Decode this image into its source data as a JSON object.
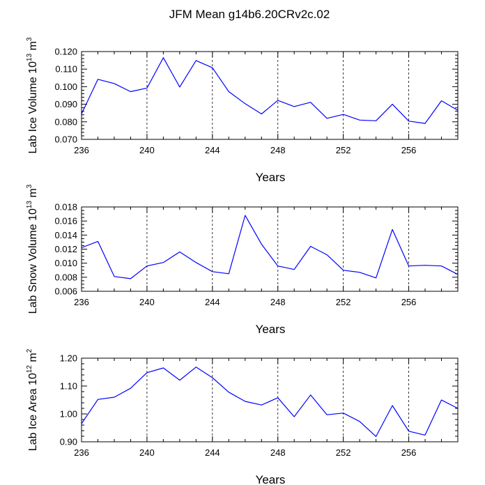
{
  "title": "JFM Mean g14b6.20CRv2c.02",
  "line_color": "#0000ff",
  "chart_data": [
    {
      "type": "line",
      "xlabel": "Years",
      "ylabel_main": "Lab Ice Volume 10",
      "ylabel_exp": "13",
      "ylabel_unit": " m",
      "ylabel_unit_exp": "3",
      "xlim": [
        236,
        259
      ],
      "ylim": [
        0.07,
        0.12
      ],
      "x_ticks": [
        "236",
        "240",
        "244",
        "248",
        "252",
        "256"
      ],
      "y_ticks": [
        "0.070",
        "0.080",
        "0.090",
        "0.100",
        "0.110",
        "0.120"
      ],
      "x": [
        236,
        237,
        238,
        239,
        240,
        241,
        242,
        243,
        244,
        245,
        246,
        247,
        248,
        249,
        250,
        251,
        252,
        253,
        254,
        255,
        256,
        257,
        258,
        259
      ],
      "values": [
        0.0845,
        0.1042,
        0.1018,
        0.0972,
        0.0992,
        0.1165,
        0.0998,
        0.1149,
        0.1108,
        0.0972,
        0.0903,
        0.0845,
        0.0922,
        0.0887,
        0.0911,
        0.082,
        0.0842,
        0.081,
        0.0806,
        0.09,
        0.0804,
        0.0791,
        0.092,
        0.0865
      ]
    },
    {
      "type": "line",
      "xlabel": "Years",
      "ylabel_main": "Lab Snow Volume 10",
      "ylabel_exp": "13",
      "ylabel_unit": " m",
      "ylabel_unit_exp": "3",
      "xlim": [
        236,
        259
      ],
      "ylim": [
        0.006,
        0.018
      ],
      "x_ticks": [
        "236",
        "240",
        "244",
        "248",
        "252",
        "256"
      ],
      "y_ticks": [
        "0.006",
        "0.008",
        "0.010",
        "0.012",
        "0.014",
        "0.016",
        "0.018"
      ],
      "x": [
        236,
        237,
        238,
        239,
        240,
        241,
        242,
        243,
        244,
        245,
        246,
        247,
        248,
        249,
        250,
        251,
        252,
        253,
        254,
        255,
        256,
        257,
        258,
        259
      ],
      "values": [
        0.0122,
        0.0131,
        0.0081,
        0.0078,
        0.0096,
        0.0101,
        0.0116,
        0.0101,
        0.0088,
        0.0085,
        0.0168,
        0.0127,
        0.0096,
        0.0091,
        0.0124,
        0.0112,
        0.009,
        0.0087,
        0.0079,
        0.0148,
        0.0096,
        0.0097,
        0.0096,
        0.0084
      ]
    },
    {
      "type": "line",
      "xlabel": "Years",
      "ylabel_main": "Lab Ice Area 10",
      "ylabel_exp": "12",
      "ylabel_unit": " m",
      "ylabel_unit_exp": "2",
      "xlim": [
        236,
        259
      ],
      "ylim": [
        0.9,
        1.2
      ],
      "x_ticks": [
        "236",
        "240",
        "244",
        "248",
        "252",
        "256"
      ],
      "y_ticks": [
        "0.90",
        "1.00",
        "1.10",
        "1.20"
      ],
      "x": [
        236,
        237,
        238,
        239,
        240,
        241,
        242,
        243,
        244,
        245,
        246,
        247,
        248,
        249,
        250,
        251,
        252,
        253,
        254,
        255,
        256,
        257,
        258,
        259
      ],
      "values": [
        0.965,
        1.052,
        1.06,
        1.092,
        1.148,
        1.165,
        1.121,
        1.168,
        1.13,
        1.078,
        1.045,
        1.032,
        1.058,
        0.99,
        1.068,
        0.997,
        1.003,
        0.973,
        0.919,
        1.03,
        0.938,
        0.924,
        1.05,
        1.02
      ]
    }
  ]
}
